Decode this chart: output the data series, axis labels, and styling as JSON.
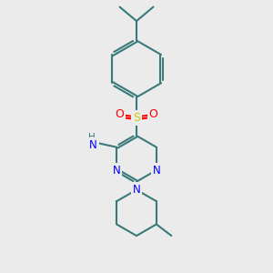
{
  "bg_color": "#ebebeb",
  "bond_color": "#3a7a7a",
  "bond_width": 1.5,
  "n_color": "#0000ff",
  "o_color": "#ff0000",
  "s_color": "#cccc00",
  "figsize": [
    3.0,
    3.0
  ],
  "dpi": 100,
  "xlim": [
    0,
    10
  ],
  "ylim": [
    0,
    10
  ]
}
